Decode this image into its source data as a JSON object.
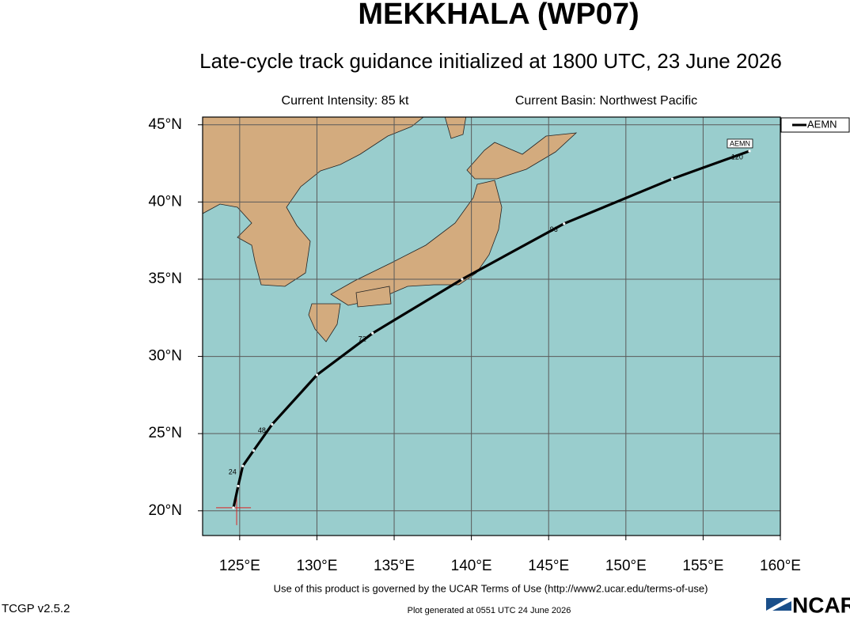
{
  "chart_data": {
    "type": "track",
    "title": "MEKKHALA (WP07)",
    "subtitle": "Late-cycle track guidance initialized at 1800 UTC, 23 June 2026",
    "intensity": "Current Intensity: 85 kt",
    "basin": "Current Basin: Northwest Pacific",
    "xlim": [
      122.6,
      160
    ],
    "ylim": [
      18.4,
      45.5
    ],
    "xticks": [
      {
        "value": 125,
        "label": "125°E"
      },
      {
        "value": 130,
        "label": "130°E"
      },
      {
        "value": 135,
        "label": "135°E"
      },
      {
        "value": 140,
        "label": "140°E"
      },
      {
        "value": 145,
        "label": "145°E"
      },
      {
        "value": 150,
        "label": "150°E"
      },
      {
        "value": 155,
        "label": "155°E"
      },
      {
        "value": 160,
        "label": "160°E"
      }
    ],
    "yticks": [
      {
        "value": 20,
        "label": "20°N"
      },
      {
        "value": 25,
        "label": "25°N"
      },
      {
        "value": 30,
        "label": "30°N"
      },
      {
        "value": 35,
        "label": "35°N"
      },
      {
        "value": 40,
        "label": "40°N"
      },
      {
        "value": 45,
        "label": "45°N"
      }
    ],
    "grid": true,
    "legend_position": "upper right",
    "series": [
      {
        "name": "AEMN",
        "color": "#000000",
        "x": [
          124.6,
          124.9,
          125.2,
          125.9,
          127.1,
          130.0,
          133.6,
          139.4,
          146.0,
          153.0,
          158.0
        ],
        "values": [
          20.2,
          21.6,
          22.9,
          23.9,
          25.6,
          28.8,
          31.5,
          35.0,
          38.6,
          41.5,
          43.3
        ],
        "hour_labels": [
          null,
          null,
          24,
          null,
          48,
          null,
          72,
          null,
          96,
          null,
          120
        ]
      }
    ],
    "footer": "Use of this product is governed by the UCAR Terms of Use (http://www2.ucar.edu/terms-of-use)",
    "version": "TCGP v2.5.2",
    "generated": "Plot generated at 0551 UTC   24 June 2026",
    "logo": "NCAR"
  }
}
